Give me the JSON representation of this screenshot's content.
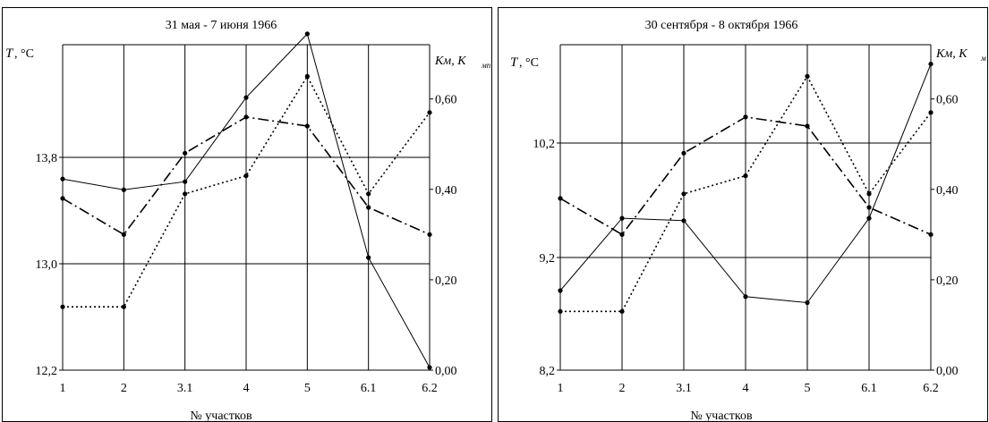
{
  "chart_data": [
    {
      "type": "line",
      "title": "31 мая - 7 июня 1966",
      "xlabel": "№ участков",
      "ylabel_left_main": "T",
      "ylabel_left_unit": ", °C",
      "ylabel_right_main": "Км, K",
      "ylabel_right_sub": "мп",
      "categories": [
        "1",
        "2",
        "3.1",
        "4",
        "5",
        "6.1",
        "6.2"
      ],
      "ylim_left": [
        12.2,
        14.6
      ],
      "yticks_left": [
        "12,2",
        "13,0",
        "13,8"
      ],
      "ylim_right": [
        0,
        0.72
      ],
      "yticks_right": [
        "0,00",
        "0,20",
        "0,40",
        "0,60"
      ],
      "grid": true,
      "series": [
        {
          "style": "solid",
          "axis": "left",
          "values": [
            13.61,
            13.53,
            13.59,
            14.21,
            14.68,
            13.03,
            12.22
          ]
        },
        {
          "style": "dashdot",
          "axis": "right",
          "values": [
            0.38,
            0.3,
            0.48,
            0.56,
            0.54,
            0.36,
            0.3
          ]
        },
        {
          "style": "dotted",
          "axis": "right",
          "values": [
            0.14,
            0.14,
            0.39,
            0.43,
            0.65,
            0.39,
            0.57
          ]
        }
      ]
    },
    {
      "type": "line",
      "title": "30 сентября - 8 октября 1966",
      "xlabel": "№ участков",
      "ylabel_left_main": "T",
      "ylabel_left_unit": ", °C",
      "ylabel_right_main": "Км, K",
      "ylabel_right_sub": "м",
      "categories": [
        "1",
        "2",
        "3.1",
        "4",
        "5",
        "6.1",
        "6.2"
      ],
      "ylim_left": [
        8.2,
        10.9
      ],
      "yticks_left": [
        "8,2",
        "9,2",
        "10,2"
      ],
      "ylim_right": [
        0,
        0.72
      ],
      "yticks_right": [
        "0,00",
        "0,20",
        "0,40",
        "0,60"
      ],
      "grid": true,
      "series": [
        {
          "style": "solid",
          "axis": "left",
          "values": [
            8.86,
            9.46,
            9.44,
            8.81,
            8.76,
            9.46,
            10.74
          ]
        },
        {
          "style": "dashdot",
          "axis": "right",
          "values": [
            0.38,
            0.3,
            0.48,
            0.56,
            0.54,
            0.36,
            0.3
          ]
        },
        {
          "style": "dotted",
          "axis": "right",
          "values": [
            0.13,
            0.13,
            0.39,
            0.43,
            0.65,
            0.39,
            0.57
          ]
        }
      ]
    }
  ]
}
